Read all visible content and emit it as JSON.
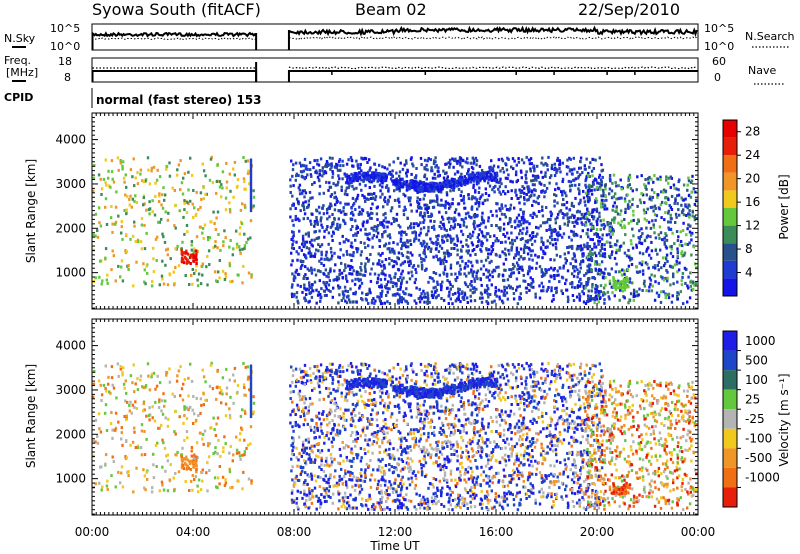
{
  "header": {
    "station": "Syowa South (fitACF)",
    "beam": "Beam 02",
    "date": "22/Sep/2010"
  },
  "noise_panel": {
    "left_label": "N.Sky",
    "left_ticks": [
      "10^5",
      "10^0"
    ],
    "right_ticks": [
      "10^5",
      "10^0"
    ],
    "right_label": "N.Search"
  },
  "freq_panel": {
    "left_label_1": "Freq.",
    "left_label_2": "[MHz]",
    "left_ticks": [
      "18",
      "8"
    ],
    "right_ticks": [
      "60",
      "0"
    ],
    "right_label": "Nave"
  },
  "cpid": {
    "label": "CPID",
    "text": "normal (fast stereo) 153"
  },
  "colors": {
    "power_scale": [
      "#1414e6",
      "#1e3cd2",
      "#28508c",
      "#3c8c5a",
      "#64c83c",
      "#f0c81e",
      "#f09628",
      "#f06e14",
      "#e61e0a",
      "#e60000"
    ],
    "velocity_scale": [
      "#1e1ee6",
      "#1e46c8",
      "#2d6e64",
      "#64c83c",
      "#b4b4b4",
      "#f0c81e",
      "#f09628",
      "#f06e14",
      "#e61e0a"
    ]
  },
  "chart_data": [
    {
      "type": "heatmap",
      "title": "",
      "quantity": "Power",
      "xlabel": "",
      "ylabel": "Slant Range [km]",
      "xlim_hours": [
        0,
        24
      ],
      "ylim_km": [
        180,
        4600
      ],
      "yticks": [
        "1000",
        "2000",
        "3000",
        "4000"
      ],
      "colorbar": {
        "label": "Power [dB]",
        "ticks": [
          "4",
          "8",
          "12",
          "16",
          "20",
          "24",
          "28"
        ],
        "range": [
          0,
          30
        ]
      }
    },
    {
      "type": "heatmap",
      "title": "",
      "quantity": "Velocity",
      "xlabel": "Time UT",
      "ylabel": "Slant Range [km]",
      "xlim_hours": [
        0,
        24
      ],
      "ylim_km": [
        180,
        4600
      ],
      "xticks": [
        "00:00",
        "04:00",
        "08:00",
        "12:00",
        "16:00",
        "20:00",
        "00:00"
      ],
      "yticks": [
        "1000",
        "2000",
        "3000",
        "4000"
      ],
      "colorbar": {
        "label": "Velocity [m s⁻¹]",
        "ticks": [
          "1000",
          "500",
          "100",
          "25",
          "-25",
          "-100",
          "-500",
          "-1000"
        ]
      }
    }
  ]
}
